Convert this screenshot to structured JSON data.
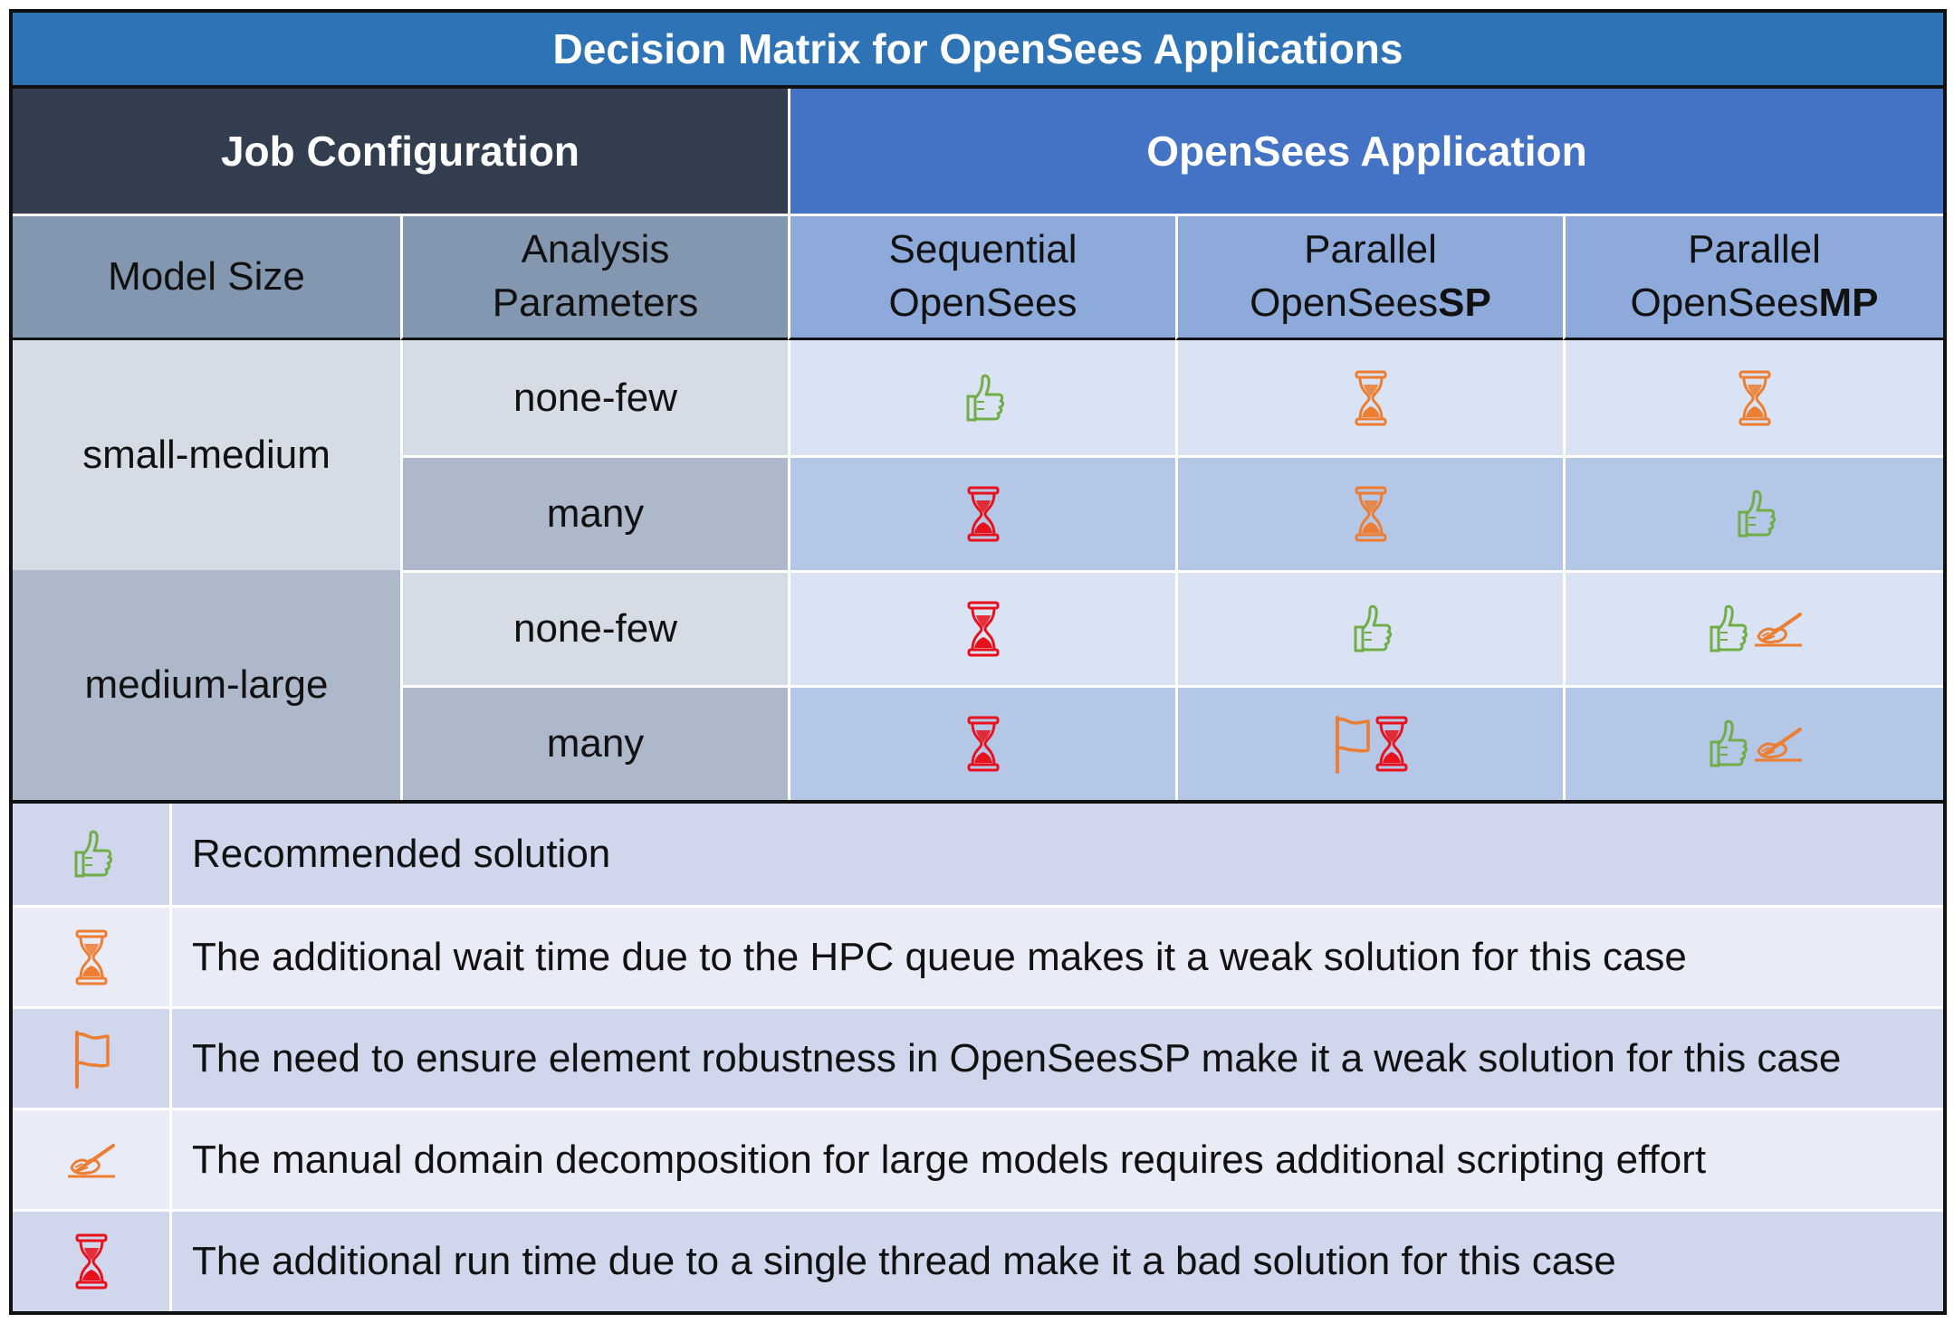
{
  "title": "Decision Matrix for OpenSees Applications",
  "headers": {
    "job_configuration": "Job Configuration",
    "opensees_application": "OpenSees Application",
    "model_size": "Model Size",
    "analysis_parameters": [
      "Analysis",
      "Parameters"
    ],
    "sequential": [
      "Sequential",
      "OpenSees"
    ],
    "parallel_sp": {
      "line1": "Parallel",
      "prefix": "OpenSees",
      "suffix": "SP"
    },
    "parallel_mp": {
      "line1": "Parallel",
      "prefix": "OpenSees",
      "suffix": "MP"
    }
  },
  "rows": {
    "size_small_medium": "small-medium",
    "size_medium_large": "medium-large",
    "param_none_few": "none-few",
    "param_many": "many"
  },
  "matrix": [
    {
      "model_size": "small-medium",
      "params": "none-few",
      "sequential": [
        "thumbs-up"
      ],
      "parallel_sp": [
        "hourglass-orange"
      ],
      "parallel_mp": [
        "hourglass-orange"
      ]
    },
    {
      "model_size": "small-medium",
      "params": "many",
      "sequential": [
        "hourglass-red"
      ],
      "parallel_sp": [
        "hourglass-orange"
      ],
      "parallel_mp": [
        "thumbs-up"
      ]
    },
    {
      "model_size": "medium-large",
      "params": "none-few",
      "sequential": [
        "hourglass-red"
      ],
      "parallel_sp": [
        "thumbs-up"
      ],
      "parallel_mp": [
        "thumbs-up",
        "writing-hand"
      ]
    },
    {
      "model_size": "medium-large",
      "params": "many",
      "sequential": [
        "hourglass-red"
      ],
      "parallel_sp": [
        "flag",
        "hourglass-red"
      ],
      "parallel_mp": [
        "thumbs-up",
        "writing-hand"
      ]
    }
  ],
  "legend": [
    {
      "icon": "thumbs-up",
      "text": "Recommended solution"
    },
    {
      "icon": "hourglass-orange",
      "text": "The additional wait time due to the HPC queue makes it a weak solution for this case"
    },
    {
      "icon": "flag",
      "text": "The need to ensure element robustness in OpenSeesSP make it a weak solution for this case"
    },
    {
      "icon": "writing-hand",
      "text": "The manual domain decomposition for large models requires additional scripting effort"
    },
    {
      "icon": "hourglass-red",
      "text": "The additional run time due to a single thread make it a bad solution for this case"
    }
  ],
  "colors": {
    "title_bg": "#2e73b6",
    "job_header_bg": "#323e50",
    "app_header_bg": "#4472c4",
    "green": "#70ad47",
    "orange": "#ed7d31",
    "red": "#e8101a"
  }
}
